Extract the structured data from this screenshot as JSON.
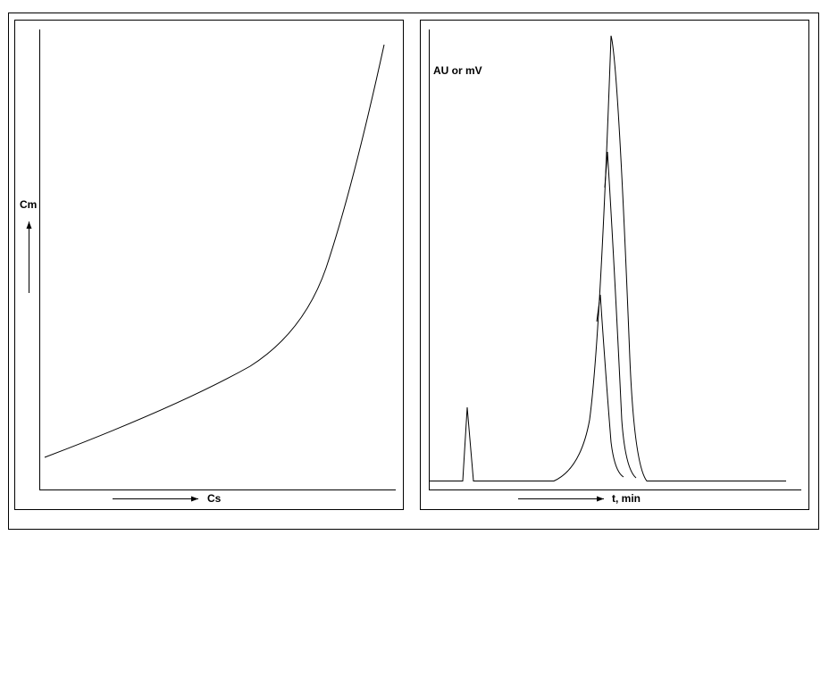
{
  "left_panel": {
    "y_label": "Cm",
    "x_label": "Cs"
  },
  "right_panel": {
    "y_label": "AU or mV",
    "x_label": "t, min"
  }
}
